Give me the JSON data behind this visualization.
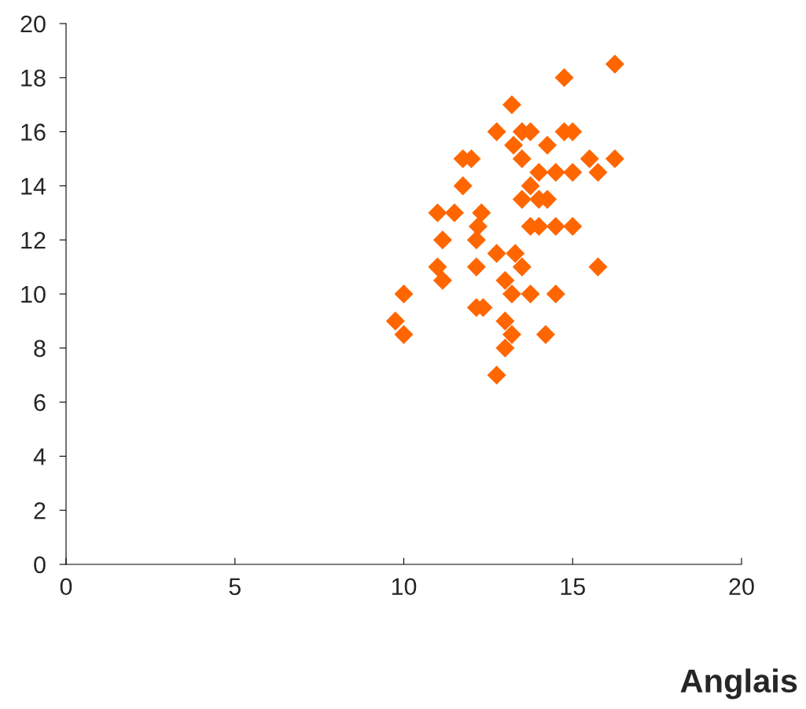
{
  "chart_data": {
    "type": "scatter",
    "xlabel": "Anglais",
    "x": [
      16.25,
      14.75,
      13.2,
      12.75,
      13.5,
      13.75,
      14.75,
      15,
      13.25,
      14.25,
      11.75,
      12,
      13.5,
      15.5,
      16.25,
      11.75,
      13.75,
      14,
      14.5,
      15,
      15.75,
      13.5,
      14,
      14.25,
      11,
      11.5,
      12.3,
      12.2,
      13.75,
      14,
      14.5,
      15,
      11.15,
      12.15,
      12.75,
      13.3,
      11,
      12.15,
      13.5,
      15.75,
      11.15,
      13,
      10,
      12.15,
      12.35,
      13.2,
      13.75,
      14.5,
      9.75,
      13,
      10,
      13.2,
      14.2,
      13,
      12.75
    ],
    "values": [
      18.5,
      18,
      17,
      16,
      16,
      16,
      16,
      16,
      15.5,
      15.5,
      15,
      15,
      15,
      15,
      15,
      14,
      14,
      14.5,
      14.5,
      14.5,
      14.5,
      13.5,
      13.5,
      13.5,
      13,
      13,
      13,
      12.5,
      12.5,
      12.5,
      12.5,
      12.5,
      12,
      12,
      11.5,
      11.5,
      11,
      11,
      11,
      11,
      10.5,
      10.5,
      10,
      9.5,
      9.5,
      10,
      10,
      10,
      9,
      9,
      8.5,
      8.5,
      8.5,
      8,
      7
    ],
    "color": "#ff6600",
    "marker": "diamond",
    "grid": false,
    "legend": false,
    "xlim": [
      0,
      20
    ],
    "xticks": [
      0,
      5,
      10,
      15,
      20
    ],
    "ylim": [
      0,
      20
    ],
    "yticks": [
      0,
      2,
      4,
      6,
      8,
      10,
      12,
      14,
      16,
      18,
      20
    ]
  }
}
